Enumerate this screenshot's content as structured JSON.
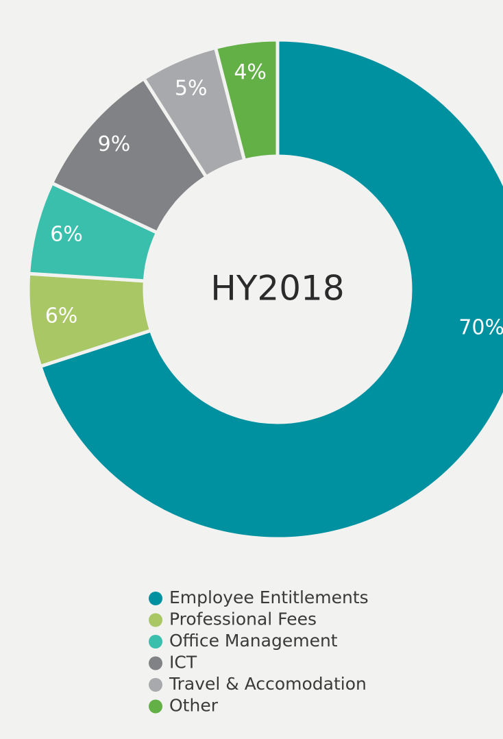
{
  "chart_data": {
    "type": "donut",
    "center_label": "HY2018",
    "categories": [
      "Employee Entitlements",
      "Professional Fees",
      "Office Management",
      "ICT",
      "Travel & Accomodation",
      "Other"
    ],
    "values": [
      70,
      6,
      6,
      9,
      5,
      4
    ],
    "value_labels": [
      "70%",
      "6%",
      "6%",
      "9%",
      "5%",
      "4%"
    ],
    "colors": [
      "#0091a1",
      "#a9c765",
      "#3bbfad",
      "#808285",
      "#a7a9ac",
      "#62b046"
    ],
    "legend": "bottom"
  }
}
